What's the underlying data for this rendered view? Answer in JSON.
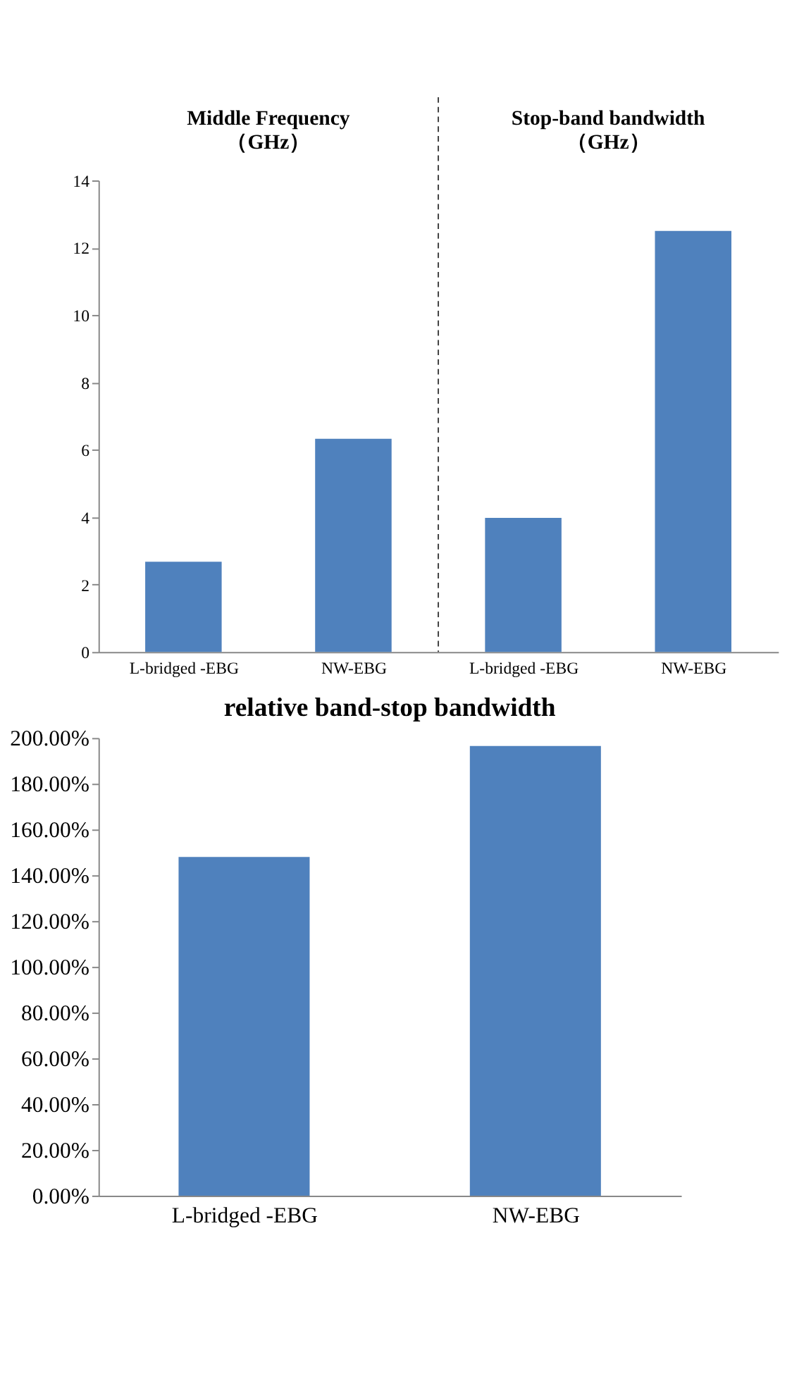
{
  "chart_data": [
    {
      "type": "bar",
      "categories": [
        "L-bridged -EBG",
        "NW-EBG",
        "L-bridged -EBG",
        "NW-EBG"
      ],
      "values": [
        2.68,
        6.33,
        3.98,
        12.5
      ],
      "color": "#4f81bd",
      "ylim": [
        0,
        14
      ],
      "yticks": [
        0,
        2,
        4,
        6,
        8,
        10,
        12,
        14
      ],
      "grid": false,
      "annotations": [
        "Middle Frequency\n（GHz）",
        "Stop-band bandwidth\n（GHz）"
      ]
    },
    {
      "type": "bar",
      "title": "relative band-stop bandwidth",
      "categories": [
        "L-bridged -EBG",
        "NW-EBG"
      ],
      "values": [
        148,
        196.5
      ],
      "color": "#4f81bd",
      "ylim": [
        0,
        200
      ],
      "grid": false,
      "yticks": [
        {
          "value": 0,
          "label": "0.00%"
        },
        {
          "value": 20,
          "label": "20.00%"
        },
        {
          "value": 40,
          "label": "40.00%"
        },
        {
          "value": 60,
          "label": "60.00%"
        },
        {
          "value": 80,
          "label": "80.00%"
        },
        {
          "value": 100,
          "label": "100.00%"
        },
        {
          "value": 120,
          "label": "120.00%"
        },
        {
          "value": 140,
          "label": "140.00%"
        },
        {
          "value": 160,
          "label": "160.00%"
        },
        {
          "value": 180,
          "label": "180.00%"
        },
        {
          "value": 200,
          "label": "200.00%"
        }
      ]
    }
  ]
}
